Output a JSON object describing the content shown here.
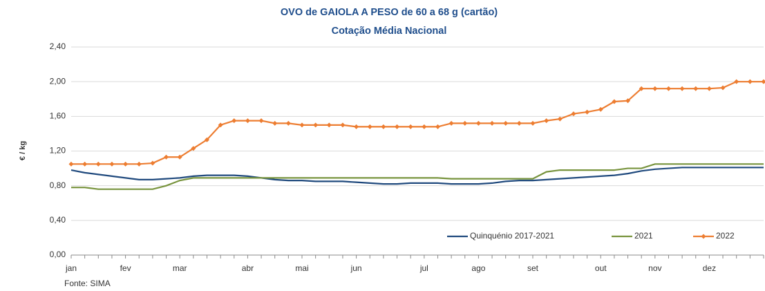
{
  "chart_data": {
    "type": "line",
    "title": "OVO de GAIOLA A PESO de 60 a 68 g (cartão)",
    "subtitle": "Cotação Média Nacional",
    "y_label": "€ / kg",
    "source": "Fonte: SIMA",
    "categories": [
      "jan",
      null,
      null,
      null,
      "fev",
      null,
      null,
      null,
      "mar",
      null,
      null,
      null,
      null,
      "abr",
      null,
      null,
      null,
      "mai",
      null,
      null,
      null,
      "jun",
      null,
      null,
      null,
      null,
      "jul",
      null,
      null,
      null,
      "ago",
      null,
      null,
      null,
      "set",
      null,
      null,
      null,
      null,
      "out",
      null,
      null,
      null,
      "nov",
      null,
      null,
      null,
      "dez",
      null,
      null,
      null,
      null
    ],
    "series": [
      {
        "name": "Quinquénio 2017-2021",
        "color": "#1f497d",
        "marker": false,
        "values": [
          0.98,
          0.95,
          0.93,
          0.91,
          0.89,
          0.87,
          0.87,
          0.88,
          0.89,
          0.91,
          0.92,
          0.92,
          0.92,
          0.91,
          0.89,
          0.87,
          0.86,
          0.86,
          0.85,
          0.85,
          0.85,
          0.84,
          0.83,
          0.82,
          0.82,
          0.83,
          0.83,
          0.83,
          0.82,
          0.82,
          0.82,
          0.83,
          0.85,
          0.86,
          0.86,
          0.87,
          0.88,
          0.89,
          0.9,
          0.91,
          0.92,
          0.94,
          0.97,
          0.99,
          1.0,
          1.01,
          1.01,
          1.01,
          1.01,
          1.01,
          1.01,
          1.01
        ]
      },
      {
        "name": "2021",
        "color": "#77933c",
        "marker": false,
        "values": [
          0.78,
          0.78,
          0.76,
          0.76,
          0.76,
          0.76,
          0.76,
          0.8,
          0.86,
          0.89,
          0.89,
          0.89,
          0.89,
          0.89,
          0.89,
          0.89,
          0.89,
          0.89,
          0.89,
          0.89,
          0.89,
          0.89,
          0.89,
          0.89,
          0.89,
          0.89,
          0.89,
          0.89,
          0.88,
          0.88,
          0.88,
          0.88,
          0.88,
          0.88,
          0.88,
          0.96,
          0.98,
          0.98,
          0.98,
          0.98,
          0.98,
          1.0,
          1.0,
          1.05,
          1.05,
          1.05,
          1.05,
          1.05,
          1.05,
          1.05,
          1.05,
          1.05
        ]
      },
      {
        "name": "2022",
        "color": "#ed7d31",
        "marker": true,
        "values": [
          1.05,
          1.05,
          1.05,
          1.05,
          1.05,
          1.05,
          1.06,
          1.13,
          1.13,
          1.23,
          1.33,
          1.5,
          1.55,
          1.55,
          1.55,
          1.52,
          1.52,
          1.5,
          1.5,
          1.5,
          1.5,
          1.48,
          1.48,
          1.48,
          1.48,
          1.48,
          1.48,
          1.48,
          1.52,
          1.52,
          1.52,
          1.52,
          1.52,
          1.52,
          1.52,
          1.55,
          1.57,
          1.63,
          1.65,
          1.68,
          1.77,
          1.78,
          1.92,
          1.92,
          1.92,
          1.92,
          1.92,
          1.92,
          1.93,
          2.0,
          2.0,
          2.0
        ]
      }
    ],
    "ylim": [
      0,
      2.4
    ],
    "yticks": [
      {
        "value": 0,
        "label": "0,00"
      },
      {
        "value": 0.4,
        "label": "0,40"
      },
      {
        "value": 0.8,
        "label": "0,80"
      },
      {
        "value": 1.2,
        "label": "1,20"
      },
      {
        "value": 1.6,
        "label": "1,60"
      },
      {
        "value": 2.0,
        "label": "2,00"
      },
      {
        "value": 2.4,
        "label": "2,40"
      }
    ],
    "grid": true,
    "legend": "lower right"
  }
}
